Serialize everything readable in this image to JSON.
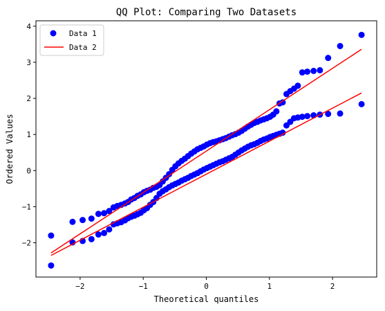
{
  "chart_data": {
    "type": "scatter",
    "title": "QQ Plot: Comparing Two Datasets",
    "xlabel": "Theoretical quantiles",
    "ylabel": "Ordered Values",
    "xlim": [
      -2.7,
      2.7
    ],
    "ylim": [
      -2.95,
      4.15
    ],
    "xticks": [
      -2,
      -1,
      0,
      1,
      2
    ],
    "xtick_labels": [
      "−2",
      "−1",
      "0",
      "1",
      "2"
    ],
    "yticks": [
      -2,
      -1,
      0,
      1,
      2,
      3,
      4
    ],
    "ytick_labels": [
      "−2",
      "−1",
      "0",
      "1",
      "2",
      "3",
      "4"
    ],
    "grid": false,
    "legend": {
      "position": "upper-left",
      "entries": [
        {
          "label": "Data 1",
          "marker": "circle",
          "color": "#0000ff"
        },
        {
          "label": "Data 2",
          "marker": "line",
          "color": "#ff0000"
        }
      ]
    },
    "series": [
      {
        "name": "Data 1",
        "kind": "scatter",
        "color": "#0000ff",
        "x": [
          -2.46,
          -2.12,
          -1.96,
          -1.82,
          -1.71,
          -1.62,
          -1.54,
          -1.47,
          -1.41,
          -1.35,
          -1.29,
          -1.24,
          -1.19,
          -1.14,
          -1.09,
          -1.04,
          -0.99,
          -0.94,
          -0.89,
          -0.84,
          -0.79,
          -0.74,
          -0.69,
          -0.64,
          -0.59,
          -0.54,
          -0.49,
          -0.44,
          -0.39,
          -0.34,
          -0.29,
          -0.24,
          -0.19,
          -0.14,
          -0.09,
          -0.04,
          0.01,
          0.06,
          0.11,
          0.16,
          0.21,
          0.26,
          0.31,
          0.36,
          0.41,
          0.46,
          0.51,
          0.56,
          0.61,
          0.66,
          0.71,
          0.76,
          0.81,
          0.86,
          0.91,
          0.96,
          1.01,
          1.06,
          1.11,
          1.16,
          1.21,
          1.27,
          1.33,
          1.39,
          1.45,
          1.52,
          1.6,
          1.7,
          1.8,
          1.93,
          2.12,
          2.46
        ],
        "y": [
          -1.8,
          -1.42,
          -1.37,
          -1.33,
          -1.2,
          -1.18,
          -1.12,
          -1.02,
          -0.98,
          -0.95,
          -0.91,
          -0.87,
          -0.8,
          -0.76,
          -0.7,
          -0.66,
          -0.6,
          -0.56,
          -0.53,
          -0.48,
          -0.45,
          -0.4,
          -0.3,
          -0.2,
          -0.1,
          0.02,
          0.12,
          0.2,
          0.27,
          0.33,
          0.4,
          0.47,
          0.53,
          0.59,
          0.63,
          0.67,
          0.72,
          0.76,
          0.79,
          0.81,
          0.84,
          0.87,
          0.9,
          0.94,
          0.98,
          1.01,
          1.05,
          1.1,
          1.16,
          1.22,
          1.27,
          1.32,
          1.35,
          1.39,
          1.42,
          1.45,
          1.49,
          1.55,
          1.64,
          1.86,
          1.89,
          2.12,
          2.2,
          2.27,
          2.35,
          2.72,
          2.74,
          2.76,
          2.78,
          3.12,
          3.45,
          3.76
        ]
      },
      {
        "name": "",
        "kind": "scatter",
        "color": "#0000ff",
        "x": [
          -2.46,
          -2.12,
          -1.96,
          -1.82,
          -1.71,
          -1.62,
          -1.54,
          -1.47,
          -1.41,
          -1.35,
          -1.29,
          -1.24,
          -1.19,
          -1.14,
          -1.09,
          -1.04,
          -0.99,
          -0.94,
          -0.89,
          -0.84,
          -0.79,
          -0.74,
          -0.69,
          -0.64,
          -0.59,
          -0.54,
          -0.49,
          -0.44,
          -0.39,
          -0.34,
          -0.29,
          -0.24,
          -0.19,
          -0.14,
          -0.09,
          -0.04,
          0.01,
          0.06,
          0.11,
          0.16,
          0.21,
          0.26,
          0.31,
          0.36,
          0.41,
          0.46,
          0.51,
          0.56,
          0.61,
          0.66,
          0.71,
          0.76,
          0.81,
          0.86,
          0.91,
          0.96,
          1.01,
          1.06,
          1.11,
          1.16,
          1.21,
          1.27,
          1.33,
          1.39,
          1.45,
          1.52,
          1.6,
          1.7,
          1.8,
          1.93,
          2.12,
          2.46
        ],
        "y": [
          -2.63,
          -1.99,
          -1.95,
          -1.9,
          -1.77,
          -1.73,
          -1.63,
          -1.49,
          -1.46,
          -1.43,
          -1.38,
          -1.32,
          -1.28,
          -1.25,
          -1.21,
          -1.17,
          -1.1,
          -1.04,
          -0.95,
          -0.87,
          -0.76,
          -0.64,
          -0.57,
          -0.52,
          -0.46,
          -0.41,
          -0.37,
          -0.33,
          -0.28,
          -0.24,
          -0.2,
          -0.15,
          -0.11,
          -0.07,
          -0.02,
          0.03,
          0.07,
          0.11,
          0.15,
          0.19,
          0.23,
          0.26,
          0.3,
          0.34,
          0.38,
          0.44,
          0.5,
          0.56,
          0.61,
          0.66,
          0.7,
          0.73,
          0.77,
          0.82,
          0.86,
          0.89,
          0.93,
          0.96,
          0.99,
          1.02,
          1.05,
          1.25,
          1.35,
          1.45,
          1.47,
          1.49,
          1.51,
          1.53,
          1.55,
          1.57,
          1.58,
          1.84
        ]
      },
      {
        "name": "Data 2",
        "kind": "line",
        "color": "#ff0000",
        "x": [
          -2.46,
          2.46
        ],
        "y": [
          -2.28,
          3.36
        ]
      },
      {
        "name": "",
        "kind": "line",
        "color": "#ff0000",
        "x": [
          -2.46,
          2.46
        ],
        "y": [
          -2.35,
          2.15
        ]
      }
    ]
  }
}
